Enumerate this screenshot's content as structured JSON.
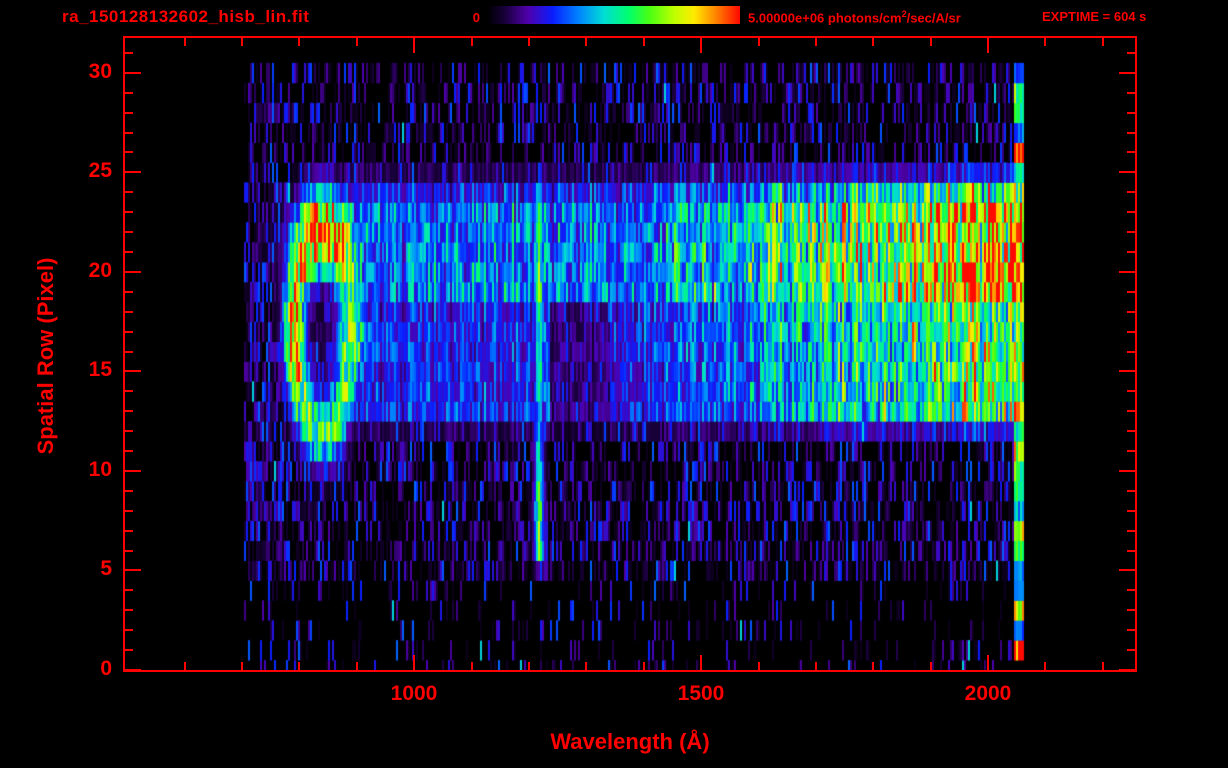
{
  "header": {
    "title": "ra_150128132602_hisb_lin.fit",
    "colorbar": {
      "min_label": "0",
      "max_value": "5.00000e+06",
      "unit_prefix": " photons/cm",
      "unit_sup": "2",
      "unit_suffix": "/sec/A/sr"
    },
    "exptime": "EXPTIME = 604 s"
  },
  "colors": {
    "accent": "#ff0000",
    "background": "#000000"
  },
  "chart_data": {
    "type": "heatmap",
    "title": "ra_150128132602_hisb_lin.fit",
    "xlabel": "Wavelength (Å)",
    "ylabel": "Spatial Row (Pixel)",
    "x_axis_range": [
      496,
      2256
    ],
    "y_axis_range": [
      0,
      31.75
    ],
    "xticks": [
      1000,
      1500,
      2000
    ],
    "x_minor_ticks_step": 100,
    "x_minor_ticks_range": [
      600,
      2200
    ],
    "yticks": [
      0,
      5,
      10,
      15,
      20,
      25,
      30
    ],
    "y_minor_ticks_step": 1,
    "colorbar": {
      "min": 0,
      "max": 5000000,
      "min_label": "0",
      "max_label": "5.00000e+06",
      "units": "photons/cm2/sec/A/sr"
    },
    "exposure_time_s": 604,
    "colormap": [
      [
        0.0,
        [
          0,
          0,
          0
        ]
      ],
      [
        0.07,
        [
          25,
          0,
          60
        ]
      ],
      [
        0.16,
        [
          80,
          0,
          170
        ]
      ],
      [
        0.26,
        [
          10,
          30,
          255
        ]
      ],
      [
        0.36,
        [
          0,
          130,
          255
        ]
      ],
      [
        0.46,
        [
          0,
          220,
          215
        ]
      ],
      [
        0.56,
        [
          0,
          255,
          110
        ]
      ],
      [
        0.64,
        [
          70,
          255,
          20
        ]
      ],
      [
        0.74,
        [
          190,
          255,
          0
        ]
      ],
      [
        0.82,
        [
          255,
          235,
          0
        ]
      ],
      [
        0.9,
        [
          255,
          140,
          0
        ]
      ],
      [
        1.0,
        [
          255,
          10,
          0
        ]
      ]
    ],
    "features": {
      "data_wavelength_range": [
        700,
        2062
      ],
      "data_row_range": [
        0,
        30
      ],
      "background": {
        "speckle_probability_rows_5_24": 0.55,
        "speckle_probability_rows_25_30": 0.5,
        "speckle_probability_rows_0_4": 0.16,
        "left_edge_dense_below_wavelength": 770
      },
      "ring": {
        "note": "bright annular feature, red-orange left limb",
        "wavelength_center": 838,
        "row_center": 17.2,
        "wavelength_radius": 62,
        "row_radius": 6.6,
        "amplitude": 0.62,
        "left_limb_boost": 0.38,
        "top_blob": {
          "wavelength": 848,
          "row": 21.6,
          "amplitude": 0.45
        },
        "right_tail": {
          "wavelength": 940,
          "row": 16.6,
          "amplitude": 0.34
        }
      },
      "lyman_alpha": {
        "note": "vertical emission line",
        "wavelength": 1216,
        "sigma": 9,
        "row_range": [
          5.5,
          24.5
        ],
        "amplitude": 0.5,
        "bright_rows": [
          [
            18,
            23.5,
            0.6
          ],
          [
            6,
            9.5,
            0.6
          ],
          [
            10,
            13.5,
            0.42
          ]
        ]
      },
      "continuum": {
        "note": "broad band brightening toward 2000 A, rows 13-24",
        "row_range": [
          12,
          25.5
        ],
        "core_rows": [
          19,
          23.5
        ],
        "core_gain": 1.12,
        "mid_gain": 0.8,
        "edge_gain": 0.3,
        "start_wavelength": 870,
        "base": 0.3,
        "ramp_start": 1400,
        "ramp_scale": 650,
        "max": 0.75,
        "post_line_dip": [
          1235,
          1340,
          0.55
        ]
      },
      "edge_column": {
        "note": "bright noisy column at red end of detector",
        "wavelength_range": [
          2044,
          2062
        ],
        "base": 0.3,
        "variance": 0.9
      }
    }
  }
}
